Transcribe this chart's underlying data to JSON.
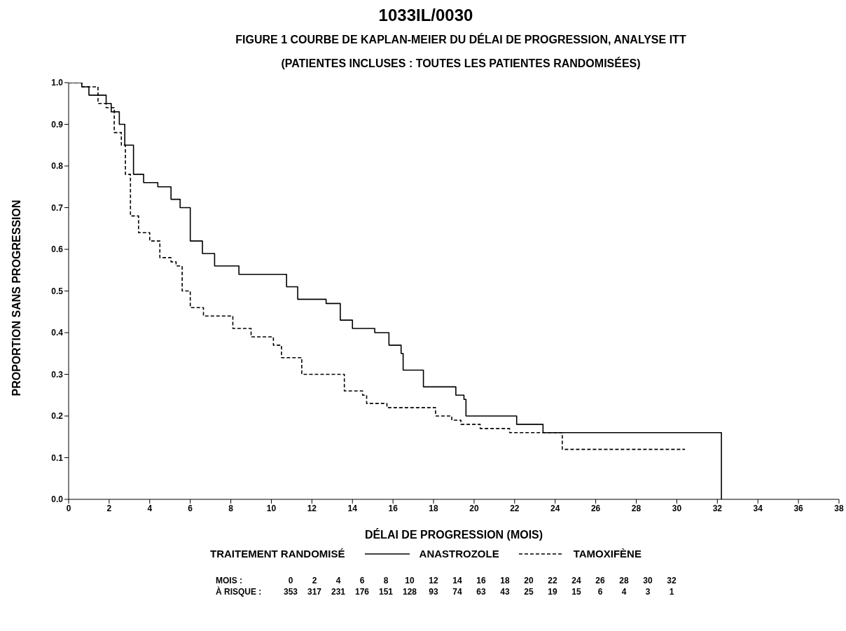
{
  "chart_data": {
    "type": "step",
    "title": "1033IL/0030",
    "subtitle": "FIGURE 1 COURBE DE KAPLAN-MEIER DU DÉLAI DE PROGRESSION, ANALYSE ITT\n(PATIENTES INCLUSES : TOUTES LES PATIENTES RANDOMISÉES)",
    "xlabel": "DÉLAI DE PROGRESSION (MOIS)",
    "ylabel": "PROPORTION SANS PROGRESSION",
    "legend_title": "TRAITEMENT RANDOMISÉ",
    "legend": "bottom",
    "marker": "none",
    "xlim": [
      0,
      38
    ],
    "xticks": [
      0,
      2,
      4,
      6,
      8,
      10,
      12,
      14,
      16,
      18,
      20,
      22,
      24,
      26,
      28,
      30,
      32,
      34,
      36,
      38
    ],
    "ylim": [
      0,
      1
    ],
    "yticks": [
      {
        "value": 0,
        "label": "0.0"
      },
      {
        "value": 0.1,
        "label": "0.1"
      },
      {
        "value": 0.2,
        "label": "0.2"
      },
      {
        "value": 0.3,
        "label": "0.3"
      },
      {
        "value": 0.4,
        "label": "0.4"
      },
      {
        "value": 0.5,
        "label": "0.5"
      },
      {
        "value": 0.6,
        "label": "0.6"
      },
      {
        "value": 0.7,
        "label": "0.7"
      },
      {
        "value": 0.8,
        "label": "0.8"
      },
      {
        "value": 0.9,
        "label": "0.9"
      },
      {
        "value": 1,
        "label": "1.0"
      }
    ],
    "series": [
      {
        "name": "ANASTROZOLE",
        "color": "#000000",
        "line_style": "solid",
        "x": [
          0,
          0.65,
          1.0,
          1.85,
          2.1,
          2.5,
          2.77,
          3.2,
          3.7,
          4.4,
          5.05,
          5.5,
          6.0,
          6.6,
          7.2,
          8.4,
          10.75,
          11.3,
          12.7,
          13.4,
          14.0,
          15.1,
          15.8,
          16.4,
          16.5,
          17.5,
          19.1,
          19.5,
          19.6,
          22.1,
          23.4,
          32.2
        ],
        "values": [
          1.0,
          0.99,
          0.97,
          0.95,
          0.93,
          0.9,
          0.85,
          0.78,
          0.76,
          0.75,
          0.72,
          0.7,
          0.62,
          0.59,
          0.56,
          0.54,
          0.51,
          0.48,
          0.47,
          0.43,
          0.41,
          0.4,
          0.37,
          0.35,
          0.31,
          0.27,
          0.25,
          0.24,
          0.2,
          0.18,
          0.16,
          0.0
        ]
      },
      {
        "name": "TAMOXIFÈNE",
        "color": "#000000",
        "line_style": "dashed",
        "x": [
          0,
          0.65,
          1.45,
          1.85,
          2.25,
          2.6,
          2.8,
          3.05,
          3.45,
          4.0,
          4.5,
          5.05,
          5.3,
          5.6,
          6.0,
          6.65,
          8.1,
          9.0,
          10.1,
          10.5,
          11.5,
          13.6,
          14.5,
          14.7,
          15.7,
          18.1,
          18.9,
          19.35,
          20.3,
          21.75,
          24.35,
          30.4
        ],
        "values": [
          1.0,
          0.99,
          0.95,
          0.94,
          0.88,
          0.85,
          0.78,
          0.68,
          0.64,
          0.62,
          0.58,
          0.57,
          0.56,
          0.5,
          0.46,
          0.44,
          0.41,
          0.39,
          0.37,
          0.34,
          0.3,
          0.26,
          0.25,
          0.23,
          0.22,
          0.2,
          0.19,
          0.18,
          0.17,
          0.16,
          0.12,
          0.12
        ]
      }
    ],
    "annotations": [
      "MOIS : 0 2 4 6 8 10 12 14 16 18 20 22 24 26 28 30 32",
      "À RISQUE : 353 317 231 176 151 128 93 74 63 43 25 19 15 6 4 3 1"
    ]
  }
}
